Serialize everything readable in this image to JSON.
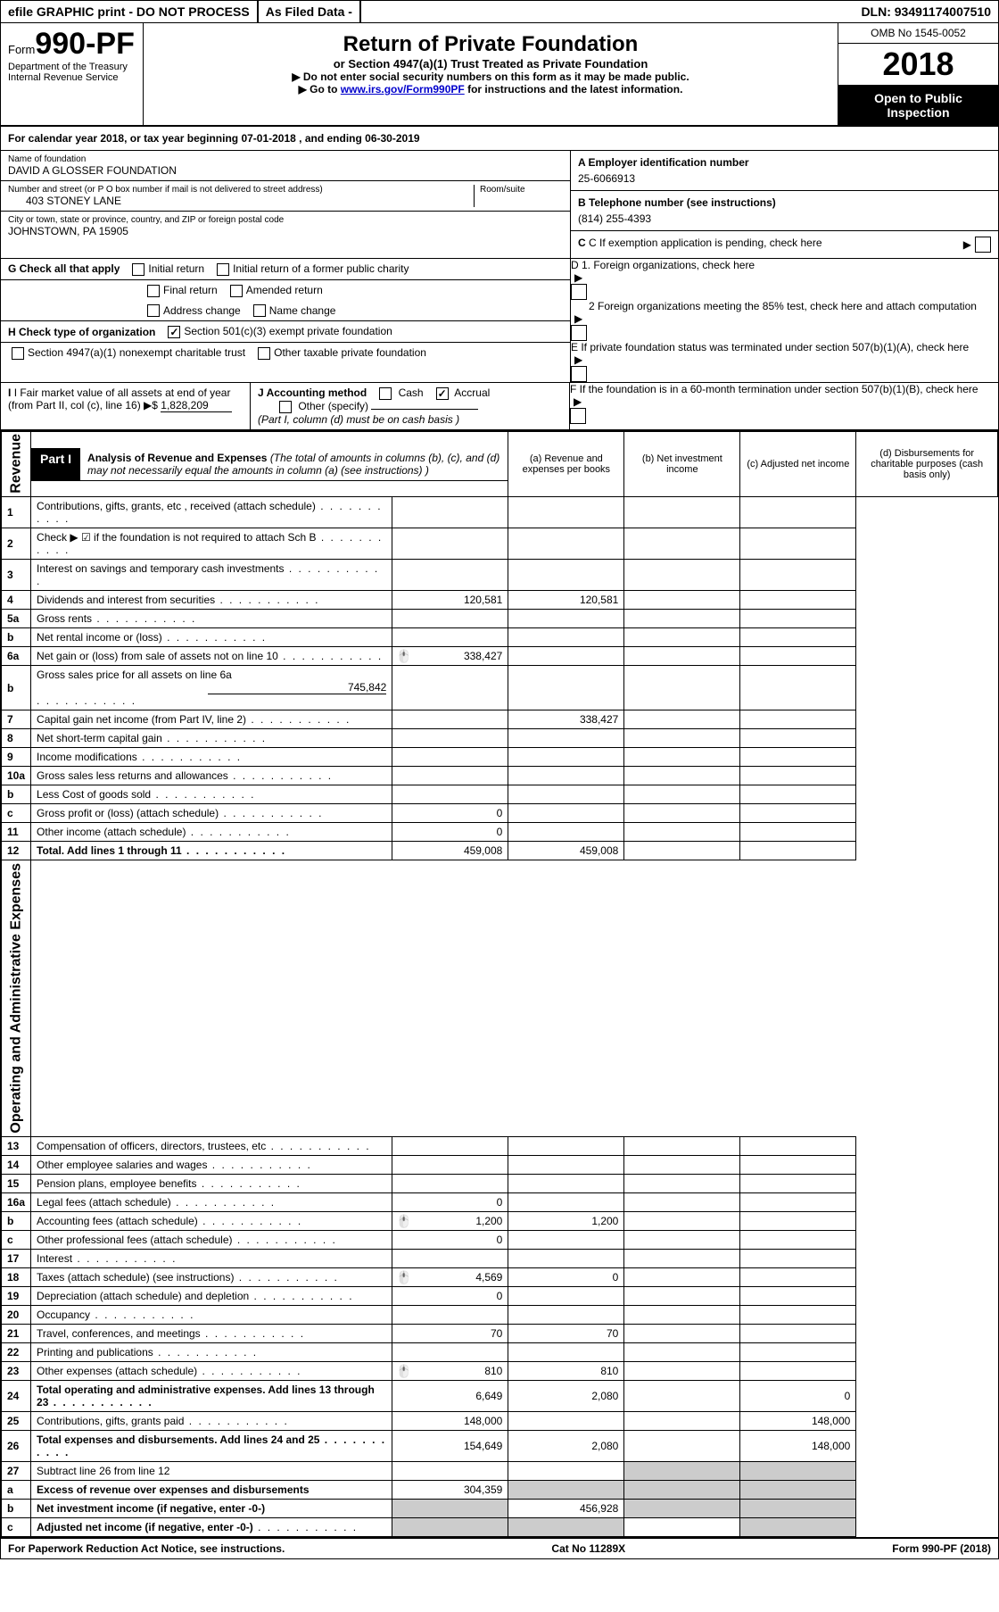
{
  "topbar": {
    "efile": "efile GRAPHIC print - DO NOT PROCESS",
    "asfiled": "As Filed Data -",
    "dln_label": "DLN:",
    "dln": "93491174007510"
  },
  "header": {
    "form_word": "Form",
    "form_num": "990-PF",
    "dept1": "Department of the Treasury",
    "dept2": "Internal Revenue Service",
    "title": "Return of Private Foundation",
    "subtitle": "or Section 4947(a)(1) Trust Treated as Private Foundation",
    "warn": "▶ Do not enter social security numbers on this form as it may be made public.",
    "goto_pre": "▶ Go to ",
    "goto_link": "www.irs.gov/Form990PF",
    "goto_post": " for instructions and the latest information.",
    "omb": "OMB No  1545-0052",
    "year": "2018",
    "open": "Open to Public Inspection"
  },
  "calyear": "For calendar year 2018, or tax year beginning 07-01-2018               , and ending 06-30-2019",
  "name": {
    "label": "Name of foundation",
    "value": "DAVID A GLOSSER FOUNDATION"
  },
  "addr": {
    "label": "Number and street (or P O  box number if mail is not delivered to street address)",
    "room": "Room/suite",
    "value": "403 STONEY LANE"
  },
  "city": {
    "label": "City or town, state or province, country, and ZIP or foreign postal code",
    "value": "JOHNSTOWN, PA  15905"
  },
  "A": {
    "label": "A Employer identification number",
    "value": "25-6066913"
  },
  "B": {
    "label": "B Telephone number (see instructions)",
    "value": "(814) 255-4393"
  },
  "C": "C  If exemption application is pending, check here",
  "D1": "D 1. Foreign organizations, check here",
  "D2": "2  Foreign organizations meeting the 85% test, check here and attach computation",
  "E": "E  If private foundation status was terminated under section 507(b)(1)(A), check here",
  "F": "F  If the foundation is in a 60-month termination under section 507(b)(1)(B), check here",
  "G": {
    "label": "G Check all that apply",
    "opts": [
      "Initial return",
      "Initial return of a former public charity",
      "Final return",
      "Amended return",
      "Address change",
      "Name change"
    ]
  },
  "H": {
    "label": "H Check type of organization",
    "opt1": "Section 501(c)(3) exempt private foundation",
    "opt2": "Section 4947(a)(1) nonexempt charitable trust",
    "opt3": "Other taxable private foundation"
  },
  "I": {
    "label": "I Fair market value of all assets at end of year (from Part II, col  (c), line 16) ▶$",
    "value": "1,828,209"
  },
  "J": {
    "label": "J Accounting method",
    "cash": "Cash",
    "accrual": "Accrual",
    "other": "Other (specify)",
    "note": "(Part I, column (d) must be on cash basis )"
  },
  "part1": {
    "label": "Part I",
    "title": "Analysis of Revenue and Expenses",
    "note": "(The total of amounts in columns (b), (c), and (d) may not necessarily equal the amounts in column (a) (see instructions) )",
    "colA": "(a)   Revenue and expenses per books",
    "colB": "(b)   Net investment income",
    "colC": "(c)   Adjusted net income",
    "colD": "(d)   Disbursements for charitable purposes (cash basis only)"
  },
  "revenue_label": "Revenue",
  "expenses_label": "Operating and Administrative Expenses",
  "lines": [
    {
      "no": "1",
      "desc": "Contributions, gifts, grants, etc , received (attach schedule)"
    },
    {
      "no": "2",
      "desc": "Check ▶ ☑ if the foundation is not required to attach Sch  B"
    },
    {
      "no": "3",
      "desc": "Interest on savings and temporary cash investments"
    },
    {
      "no": "4",
      "desc": "Dividends and interest from securities",
      "a": "120,581",
      "b": "120,581"
    },
    {
      "no": "5a",
      "desc": "Gross rents"
    },
    {
      "no": "b",
      "desc": "Net rental income or (loss)"
    },
    {
      "no": "6a",
      "desc": "Net gain or (loss) from sale of assets not on line 10",
      "a": "338,427",
      "icon": true
    },
    {
      "no": "b",
      "desc": "Gross sales price for all assets on line 6a",
      "inline": "745,842"
    },
    {
      "no": "7",
      "desc": "Capital gain net income (from Part IV, line 2)",
      "b": "338,427"
    },
    {
      "no": "8",
      "desc": "Net short-term capital gain"
    },
    {
      "no": "9",
      "desc": "Income modifications"
    },
    {
      "no": "10a",
      "desc": "Gross sales less returns and allowances"
    },
    {
      "no": "b",
      "desc": "Less  Cost of goods sold"
    },
    {
      "no": "c",
      "desc": "Gross profit or (loss) (attach schedule)",
      "a": "0"
    },
    {
      "no": "11",
      "desc": "Other income (attach schedule)",
      "a": "0"
    },
    {
      "no": "12",
      "desc": "Total. Add lines 1 through 11",
      "bold": true,
      "a": "459,008",
      "b": "459,008"
    }
  ],
  "exp_lines": [
    {
      "no": "13",
      "desc": "Compensation of officers, directors, trustees, etc"
    },
    {
      "no": "14",
      "desc": "Other employee salaries and wages"
    },
    {
      "no": "15",
      "desc": "Pension plans, employee benefits"
    },
    {
      "no": "16a",
      "desc": "Legal fees (attach schedule)",
      "a": "0"
    },
    {
      "no": "b",
      "desc": "Accounting fees (attach schedule)",
      "a": "1,200",
      "b": "1,200",
      "icon": true
    },
    {
      "no": "c",
      "desc": "Other professional fees (attach schedule)",
      "a": "0"
    },
    {
      "no": "17",
      "desc": "Interest"
    },
    {
      "no": "18",
      "desc": "Taxes (attach schedule) (see instructions)",
      "a": "4,569",
      "b": "0",
      "icon": true
    },
    {
      "no": "19",
      "desc": "Depreciation (attach schedule) and depletion",
      "a": "0"
    },
    {
      "no": "20",
      "desc": "Occupancy"
    },
    {
      "no": "21",
      "desc": "Travel, conferences, and meetings",
      "a": "70",
      "b": "70"
    },
    {
      "no": "22",
      "desc": "Printing and publications"
    },
    {
      "no": "23",
      "desc": "Other expenses (attach schedule)",
      "a": "810",
      "b": "810",
      "icon": true
    },
    {
      "no": "24",
      "desc": "Total operating and administrative expenses. Add lines 13 through 23",
      "bold": true,
      "a": "6,649",
      "b": "2,080",
      "d": "0"
    },
    {
      "no": "25",
      "desc": "Contributions, gifts, grants paid",
      "a": "148,000",
      "d": "148,000"
    },
    {
      "no": "26",
      "desc": "Total expenses and disbursements. Add lines 24 and 25",
      "bold": true,
      "a": "154,649",
      "b": "2,080",
      "d": "148,000"
    }
  ],
  "line27": {
    "no": "27",
    "desc": "Subtract line 26 from line 12",
    "a_label": "Excess of revenue over expenses and disbursements",
    "a": "304,359",
    "b_label": "Net investment income (if negative, enter -0-)",
    "b": "456,928",
    "c_label": "Adjusted net income (if negative, enter -0-)"
  },
  "footer": {
    "left": "For Paperwork Reduction Act Notice, see instructions.",
    "mid": "Cat  No  11289X",
    "right": "Form 990-PF (2018)"
  }
}
